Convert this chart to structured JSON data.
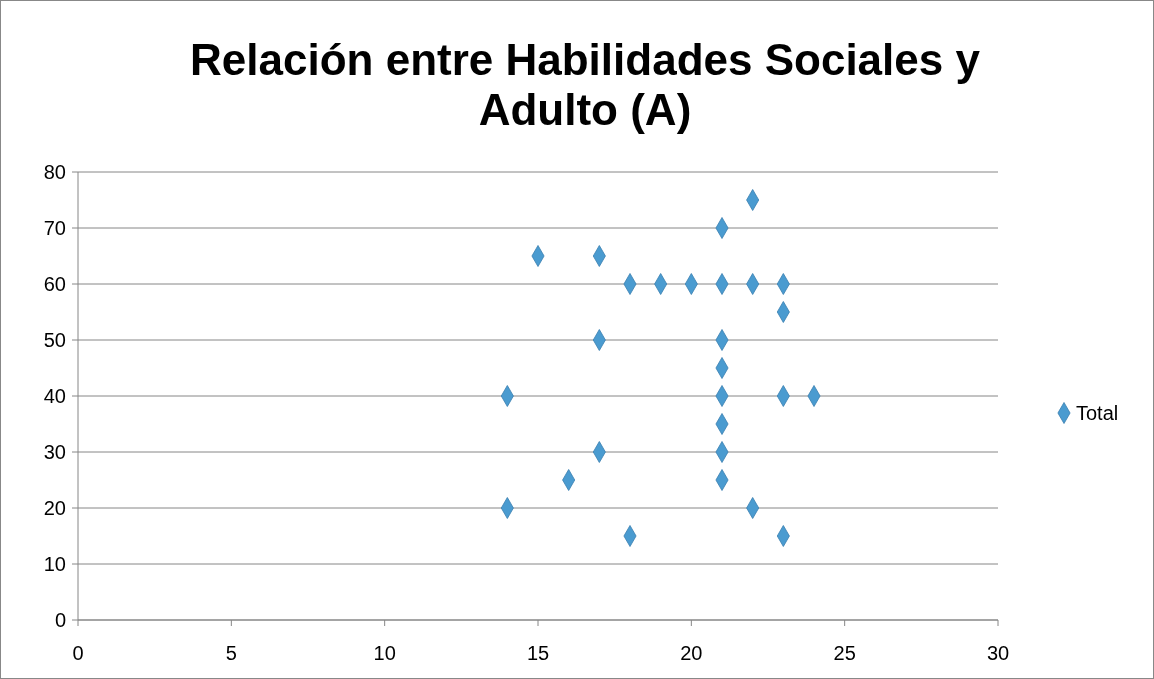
{
  "chart_data": {
    "type": "scatter",
    "title": "Relación entre Habilidades Sociales y Adulto (A)",
    "x": [
      15,
      17,
      22,
      21,
      18,
      19,
      20,
      21,
      22,
      23,
      23,
      17,
      21,
      21,
      14,
      21,
      23,
      24,
      21,
      17,
      21,
      16,
      21,
      14,
      22,
      18,
      23
    ],
    "series": [
      {
        "name": "Total",
        "color": "#4a9bd0",
        "values": [
          65,
          65,
          75,
          70,
          60,
          60,
          60,
          60,
          60,
          60,
          55,
          50,
          50,
          45,
          40,
          40,
          40,
          40,
          35,
          30,
          30,
          25,
          25,
          20,
          20,
          15,
          15
        ]
      }
    ],
    "xlim": [
      0,
      30
    ],
    "xticks": [
      0,
      5,
      10,
      15,
      20,
      25,
      30
    ],
    "ylim": [
      0,
      80
    ],
    "yticks": [
      0,
      10,
      20,
      30,
      40,
      50,
      60,
      70,
      80
    ],
    "grid": "y",
    "legend": "right",
    "marker": "diamond"
  }
}
